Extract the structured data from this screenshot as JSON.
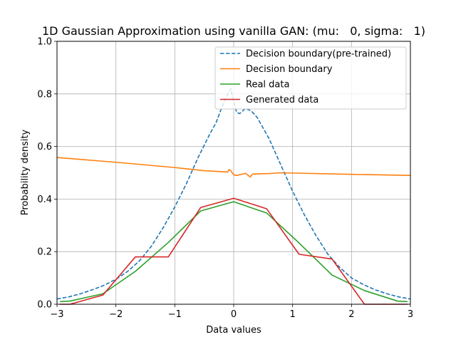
{
  "chart_data": {
    "type": "line",
    "title": "1D Gaussian Approximation using vanilla GAN: (mu:   0, sigma:   1)",
    "xlabel": "Data values",
    "ylabel": "Probability density",
    "xlim": [
      -3,
      3
    ],
    "ylim": [
      0,
      1
    ],
    "xticks": [
      -3,
      -2,
      -1,
      0,
      1,
      2,
      3
    ],
    "xtick_labels": [
      "−3",
      "−2",
      "−1",
      "0",
      "1",
      "2",
      "3"
    ],
    "yticks": [
      0,
      0.2,
      0.4,
      0.6,
      0.8,
      1.0
    ],
    "ytick_labels": [
      "0.0",
      "0.2",
      "0.4",
      "0.6",
      "0.8",
      "1.0"
    ],
    "grid": true,
    "legend_position": "upper-right",
    "series": [
      {
        "name": "Decision boundary(pre-trained)",
        "color": "#1f77b4",
        "dash": "dashed",
        "x": [
          -3,
          -2.8,
          -2.6,
          -2.4,
          -2.2,
          -2.0,
          -1.8,
          -1.6,
          -1.4,
          -1.2,
          -1.0,
          -0.8,
          -0.6,
          -0.4,
          -0.3,
          -0.2,
          -0.1,
          -0.05,
          0.0,
          0.05,
          0.1,
          0.2,
          0.3,
          0.4,
          0.6,
          0.8,
          1.0,
          1.2,
          1.4,
          1.6,
          1.8,
          2.0,
          2.2,
          2.4,
          2.6,
          2.8,
          3.0
        ],
        "y": [
          0.02,
          0.028,
          0.04,
          0.055,
          0.072,
          0.095,
          0.125,
          0.165,
          0.22,
          0.29,
          0.37,
          0.46,
          0.56,
          0.65,
          0.69,
          0.75,
          0.8,
          0.82,
          0.77,
          0.73,
          0.725,
          0.745,
          0.735,
          0.71,
          0.63,
          0.53,
          0.43,
          0.34,
          0.26,
          0.19,
          0.14,
          0.1,
          0.075,
          0.055,
          0.04,
          0.028,
          0.02
        ]
      },
      {
        "name": "Decision boundary",
        "color": "#ff7f0e",
        "dash": "solid",
        "x": [
          -3,
          -2.0,
          -1.0,
          -0.5,
          -0.1,
          -0.08,
          -0.05,
          0.0,
          0.05,
          0.15,
          0.2,
          0.28,
          0.32,
          0.6,
          0.8,
          1.0,
          2.0,
          3.0
        ],
        "y": [
          0.558,
          0.54,
          0.52,
          0.508,
          0.503,
          0.512,
          0.508,
          0.492,
          0.49,
          0.495,
          0.498,
          0.484,
          0.495,
          0.497,
          0.5,
          0.499,
          0.494,
          0.49
        ]
      },
      {
        "name": "Real data",
        "color": "#2ca02c",
        "dash": "solid",
        "x": [
          -2.95,
          -2.78,
          -2.22,
          -1.67,
          -1.11,
          -0.56,
          0.0,
          0.56,
          1.11,
          1.67,
          2.22,
          2.78,
          2.95
        ],
        "y": [
          0.01,
          0.012,
          0.04,
          0.125,
          0.235,
          0.355,
          0.39,
          0.347,
          0.233,
          0.111,
          0.052,
          0.012,
          0.01
        ]
      },
      {
        "name": "Generated data",
        "color": "#d62728",
        "dash": "solid",
        "x": [
          -2.95,
          -2.78,
          -2.22,
          -1.67,
          -1.11,
          -0.56,
          0.0,
          0.56,
          1.11,
          1.67,
          2.22,
          2.78,
          2.95
        ],
        "y": [
          0.0,
          0.0,
          0.035,
          0.18,
          0.18,
          0.368,
          0.403,
          0.363,
          0.19,
          0.172,
          0.0,
          0.0,
          0.0
        ]
      }
    ]
  }
}
